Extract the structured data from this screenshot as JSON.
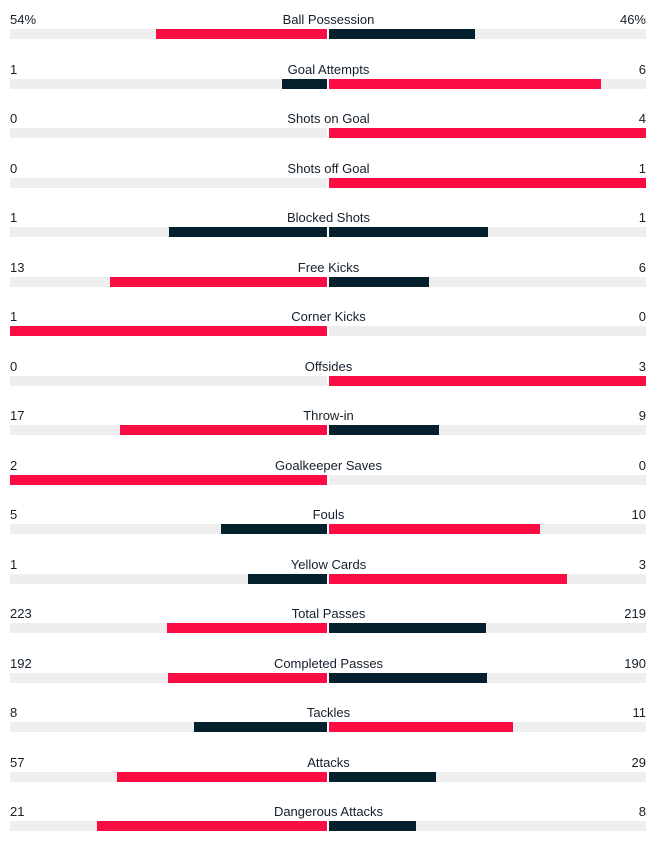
{
  "colors": {
    "higher": "#fb0d43",
    "lower": "#04202d",
    "track": "#eeeeee"
  },
  "stats": [
    {
      "label": "Ball Possession",
      "home": "54%",
      "away": "46%",
      "home_value": 54,
      "away_value": 46
    },
    {
      "label": "Goal Attempts",
      "home": "1",
      "away": "6",
      "home_value": 1,
      "away_value": 6
    },
    {
      "label": "Shots on Goal",
      "home": "0",
      "away": "4",
      "home_value": 0,
      "away_value": 4
    },
    {
      "label": "Shots off Goal",
      "home": "0",
      "away": "1",
      "home_value": 0,
      "away_value": 1
    },
    {
      "label": "Blocked Shots",
      "home": "1",
      "away": "1",
      "home_value": 1,
      "away_value": 1
    },
    {
      "label": "Free Kicks",
      "home": "13",
      "away": "6",
      "home_value": 13,
      "away_value": 6
    },
    {
      "label": "Corner Kicks",
      "home": "1",
      "away": "0",
      "home_value": 1,
      "away_value": 0
    },
    {
      "label": "Offsides",
      "home": "0",
      "away": "3",
      "home_value": 0,
      "away_value": 3
    },
    {
      "label": "Throw-in",
      "home": "17",
      "away": "9",
      "home_value": 17,
      "away_value": 9
    },
    {
      "label": "Goalkeeper Saves",
      "home": "2",
      "away": "0",
      "home_value": 2,
      "away_value": 0
    },
    {
      "label": "Fouls",
      "home": "5",
      "away": "10",
      "home_value": 5,
      "away_value": 10
    },
    {
      "label": "Yellow Cards",
      "home": "1",
      "away": "3",
      "home_value": 1,
      "away_value": 3
    },
    {
      "label": "Total Passes",
      "home": "223",
      "away": "219",
      "home_value": 223,
      "away_value": 219
    },
    {
      "label": "Completed Passes",
      "home": "192",
      "away": "190",
      "home_value": 192,
      "away_value": 190
    },
    {
      "label": "Tackles",
      "home": "8",
      "away": "11",
      "home_value": 8,
      "away_value": 11
    },
    {
      "label": "Attacks",
      "home": "57",
      "away": "29",
      "home_value": 57,
      "away_value": 29
    },
    {
      "label": "Dangerous Attacks",
      "home": "21",
      "away": "8",
      "home_value": 21,
      "away_value": 8
    }
  ]
}
